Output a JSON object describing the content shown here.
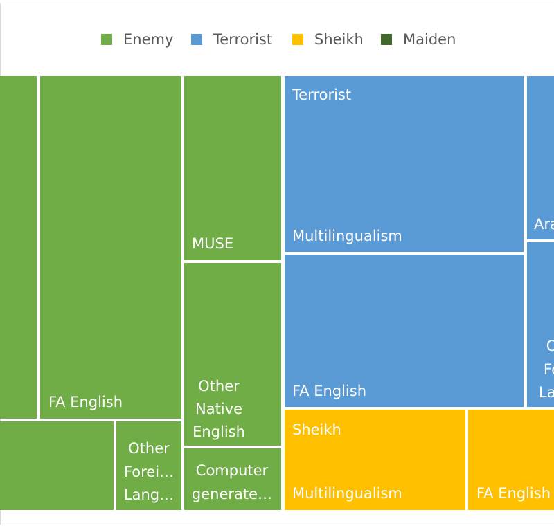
{
  "chart_data": {
    "type": "treemap",
    "title": "",
    "legend": {
      "placement": "top",
      "entries": [
        {
          "name": "Enemy",
          "color": "#70AD47"
        },
        {
          "name": "Terrorist",
          "color": "#5B9BD5"
        },
        {
          "name": "Sheikh",
          "color": "#FFC000"
        },
        {
          "name": "Maiden",
          "color": "#43682B"
        }
      ]
    },
    "groups": [
      {
        "name": "Enemy",
        "color": "#70AD47",
        "show_name": false,
        "items": [
          {
            "label": ""
          },
          {
            "label": "FA English"
          },
          {
            "label": "MUSE"
          },
          {
            "label": "Other Native English"
          },
          {
            "label": ""
          },
          {
            "label": "Other Forei… Lang…"
          },
          {
            "label": "Computer generate…"
          }
        ]
      },
      {
        "name": "Terrorist",
        "color": "#5B9BD5",
        "show_name": true,
        "items": [
          {
            "label": "Multilingualism"
          },
          {
            "label": "FA English"
          },
          {
            "label": "Ara"
          },
          {
            "label": "O Fo Lan"
          }
        ]
      },
      {
        "name": "Sheikh",
        "color": "#FFC000",
        "show_name": true,
        "items": [
          {
            "label": "Multilingualism"
          },
          {
            "label": "FA English"
          }
        ]
      }
    ]
  }
}
